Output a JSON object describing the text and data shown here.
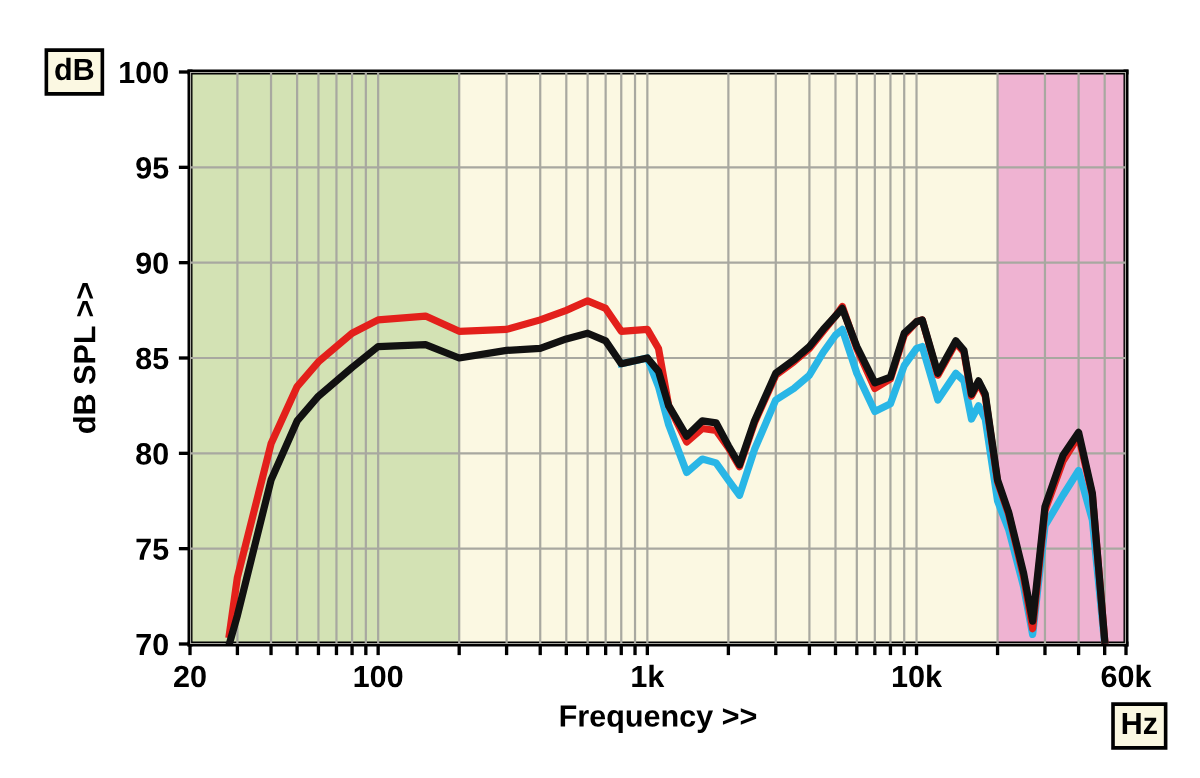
{
  "chart_data": {
    "type": "line",
    "xlabel": "Frequency >>",
    "ylabel": "dB SPL >>",
    "annotations": [
      "dB",
      "Hz"
    ],
    "log": "x",
    "x": [
      28,
      30,
      40,
      50,
      60,
      80,
      100,
      150,
      200,
      300,
      400,
      500,
      600,
      700,
      800,
      1000,
      1100,
      1200,
      1400,
      1600,
      1800,
      2000,
      2200,
      2500,
      3000,
      3500,
      4000,
      4500,
      5000,
      5300,
      6000,
      7000,
      8000,
      9000,
      10000,
      10500,
      12000,
      14000,
      15000,
      16000,
      17000,
      18000,
      20000,
      22000,
      25000,
      27000,
      30000,
      35000,
      40000,
      45000,
      50000
    ],
    "series": [
      {
        "color": "#29b6e6",
        "values": [
          null,
          null,
          null,
          null,
          null,
          null,
          null,
          null,
          null,
          null,
          null,
          null,
          null,
          null,
          84.7,
          85.0,
          83.5,
          81.5,
          79.0,
          79.7,
          79.5,
          78.6,
          77.8,
          80.2,
          82.8,
          83.4,
          84.1,
          85.3,
          86.2,
          86.5,
          84.2,
          82.2,
          82.6,
          84.6,
          85.5,
          85.6,
          82.8,
          84.2,
          83.8,
          81.8,
          82.5,
          81.8,
          77.5,
          76.0,
          73.0,
          70.5,
          76.2,
          77.8,
          79.1,
          76.5,
          70.0
        ]
      },
      {
        "color": "#e3201b",
        "values": [
          70.5,
          73.5,
          80.5,
          83.5,
          84.8,
          86.3,
          87.0,
          87.2,
          86.4,
          86.5,
          87.0,
          87.5,
          88.0,
          87.6,
          86.4,
          86.5,
          85.5,
          82.5,
          80.6,
          81.3,
          81.2,
          80.3,
          79.3,
          81.6,
          84.1,
          84.8,
          85.5,
          86.4,
          87.2,
          87.7,
          85.5,
          83.4,
          83.9,
          86.2,
          86.9,
          87.0,
          84.1,
          85.8,
          85.3,
          83.0,
          83.7,
          83.0,
          78.5,
          76.8,
          73.5,
          70.8,
          77.0,
          79.6,
          80.9,
          77.8,
          70.2
        ]
      },
      {
        "color": "#111111",
        "values": [
          70,
          71.5,
          78.6,
          81.7,
          83.0,
          84.5,
          85.6,
          85.7,
          85.0,
          85.4,
          85.5,
          86.0,
          86.3,
          85.9,
          84.7,
          85.0,
          84.3,
          82.5,
          80.9,
          81.7,
          81.6,
          80.4,
          79.4,
          81.7,
          84.2,
          84.9,
          85.6,
          86.5,
          87.2,
          87.6,
          85.6,
          83.7,
          84.0,
          86.3,
          86.9,
          87.0,
          84.2,
          85.9,
          85.4,
          83.1,
          83.8,
          83.1,
          78.6,
          76.9,
          73.7,
          71.2,
          77.2,
          79.9,
          81.1,
          77.9,
          70.2
        ]
      }
    ],
    "bands": [
      {
        "axis": "x",
        "from": 20,
        "to": 200,
        "color": "#d3e2b4"
      },
      {
        "axis": "x",
        "from": 200,
        "to": 20000,
        "color": "#fbf8e2"
      },
      {
        "axis": "x",
        "from": 20000,
        "to": 60000,
        "color": "#efb3d2"
      }
    ],
    "xlim": [
      20,
      60000
    ],
    "ylim": [
      70,
      100
    ],
    "xticks": [
      20,
      {
        "value": 30,
        "label": null
      },
      {
        "value": 40,
        "label": null
      },
      {
        "value": 50,
        "label": null
      },
      {
        "value": 60,
        "label": null
      },
      {
        "value": 70,
        "label": null
      },
      {
        "value": 80,
        "label": null
      },
      {
        "value": 90,
        "label": null
      },
      100,
      {
        "value": 200,
        "label": null
      },
      {
        "value": 300,
        "label": null
      },
      {
        "value": 400,
        "label": null
      },
      {
        "value": 500,
        "label": null
      },
      {
        "value": 600,
        "label": null
      },
      {
        "value": 700,
        "label": null
      },
      {
        "value": 800,
        "label": null
      },
      {
        "value": 900,
        "label": null
      },
      {
        "value": 1000,
        "label": "1k"
      },
      {
        "value": 2000,
        "label": null
      },
      {
        "value": 3000,
        "label": null
      },
      {
        "value": 4000,
        "label": null
      },
      {
        "value": 5000,
        "label": null
      },
      {
        "value": 6000,
        "label": null
      },
      {
        "value": 7000,
        "label": null
      },
      {
        "value": 8000,
        "label": null
      },
      {
        "value": 9000,
        "label": null
      },
      {
        "value": 10000,
        "label": "10k"
      },
      {
        "value": 20000,
        "label": null
      },
      {
        "value": 30000,
        "label": null
      },
      {
        "value": 40000,
        "label": null
      },
      {
        "value": 50000,
        "label": null
      },
      {
        "value": 60000,
        "label": "60k"
      }
    ],
    "yticks": [
      70,
      75,
      80,
      85,
      90,
      95,
      100
    ],
    "grid": true,
    "line_style": "solid",
    "legend": false
  }
}
